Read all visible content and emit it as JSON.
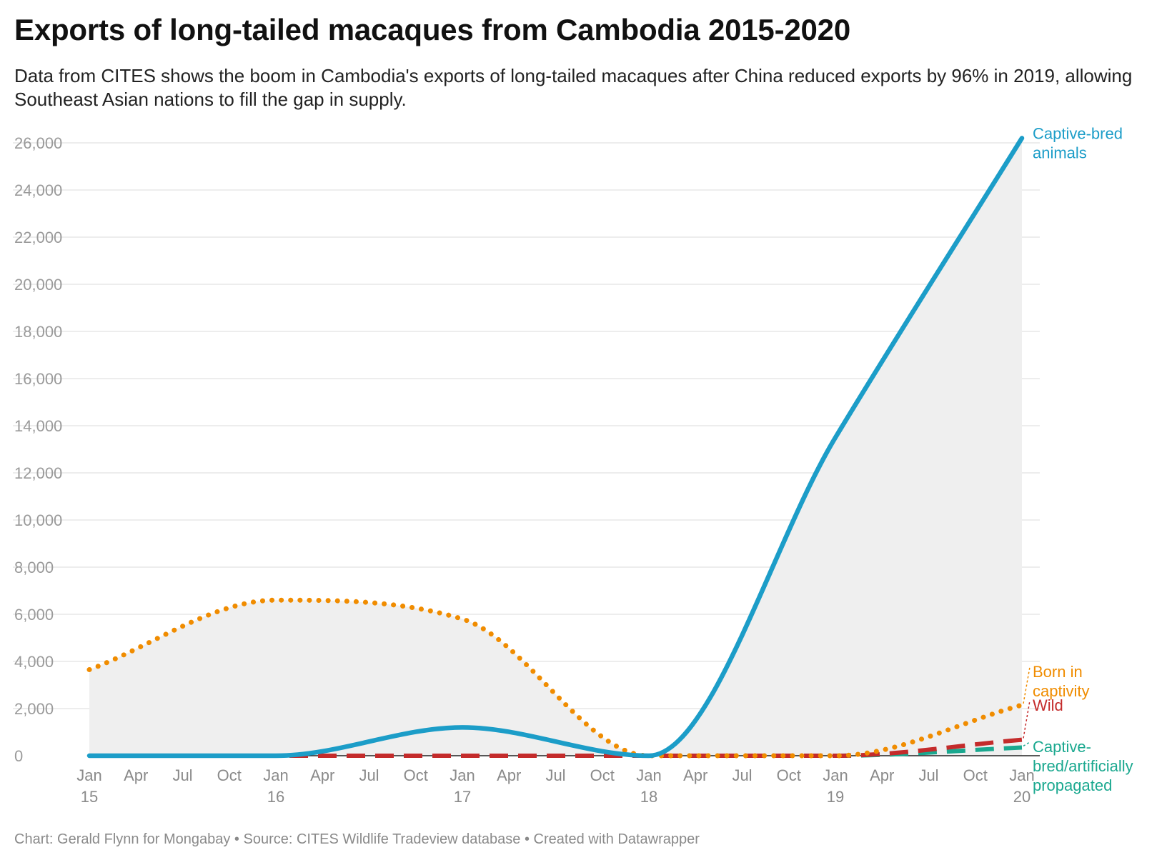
{
  "header": {
    "title": "Exports of long-tailed macaques from Cambodia 2015-2020",
    "subtitle": "Data from CITES shows the boom in Cambodia's exports of long-tailed macaques after China reduced exports by 96% in 2019, allowing Southeast Asian nations to fill the gap in supply."
  },
  "footer": {
    "credit": "Chart: Gerald Flynn for Mongabay • Source: CITES Wildlife Tradeview database • Created with Datawrapper"
  },
  "chart_data": {
    "type": "line",
    "title": "Exports of long-tailed macaques from Cambodia 2015-2020",
    "xlabel": "",
    "ylabel": "",
    "ylim": [
      0,
      26000
    ],
    "yticks": [
      0,
      2000,
      4000,
      6000,
      8000,
      10000,
      12000,
      14000,
      16000,
      18000,
      20000,
      22000,
      24000,
      26000
    ],
    "ytick_labels": [
      "0",
      "2,000",
      "4,000",
      "6,000",
      "8,000",
      "10,000",
      "12,000",
      "14,000",
      "16,000",
      "18,000",
      "20,000",
      "22,000",
      "24,000",
      "26,000"
    ],
    "x": [
      "2015",
      "2016",
      "2017",
      "2018",
      "2019",
      "2020"
    ],
    "xticks": [
      {
        "month": "Jan",
        "year": "15"
      },
      {
        "month": "Apr",
        "year": ""
      },
      {
        "month": "Jul",
        "year": ""
      },
      {
        "month": "Oct",
        "year": ""
      },
      {
        "month": "Jan",
        "year": "16"
      },
      {
        "month": "Apr",
        "year": ""
      },
      {
        "month": "Jul",
        "year": ""
      },
      {
        "month": "Oct",
        "year": ""
      },
      {
        "month": "Jan",
        "year": "17"
      },
      {
        "month": "Apr",
        "year": ""
      },
      {
        "month": "Jul",
        "year": ""
      },
      {
        "month": "Oct",
        "year": ""
      },
      {
        "month": "Jan",
        "year": "18"
      },
      {
        "month": "Apr",
        "year": ""
      },
      {
        "month": "Jul",
        "year": ""
      },
      {
        "month": "Oct",
        "year": ""
      },
      {
        "month": "Jan",
        "year": "19"
      },
      {
        "month": "Apr",
        "year": ""
      },
      {
        "month": "Jul",
        "year": ""
      },
      {
        "month": "Oct",
        "year": ""
      },
      {
        "month": "Jan",
        "year": "20"
      }
    ],
    "grid": true,
    "area_fill": "#efefef",
    "series": [
      {
        "name": "Captive-bred animals",
        "label_lines": [
          "Captive-bred",
          "animals"
        ],
        "color": "#1c9dc8",
        "style": "solid",
        "values": [
          0,
          0,
          1200,
          0,
          13500,
          26200
        ]
      },
      {
        "name": "Born in captivity",
        "label_lines": [
          "Born in",
          "captivity"
        ],
        "color": "#f08c00",
        "style": "dotted",
        "values": [
          3650,
          6600,
          5800,
          0,
          0,
          2150
        ]
      },
      {
        "name": "Wild",
        "label_lines": [
          "Wild"
        ],
        "color": "#c42b2b",
        "style": "dashed",
        "values": [
          0,
          0,
          0,
          0,
          0,
          680
        ]
      },
      {
        "name": "Captive-bred/artificially propagated",
        "label_lines": [
          "Captive-",
          "bred/artificially",
          "propagated"
        ],
        "color": "#1aa88f",
        "style": "dashed",
        "values": [
          0,
          0,
          0,
          0,
          0,
          350
        ]
      }
    ]
  }
}
